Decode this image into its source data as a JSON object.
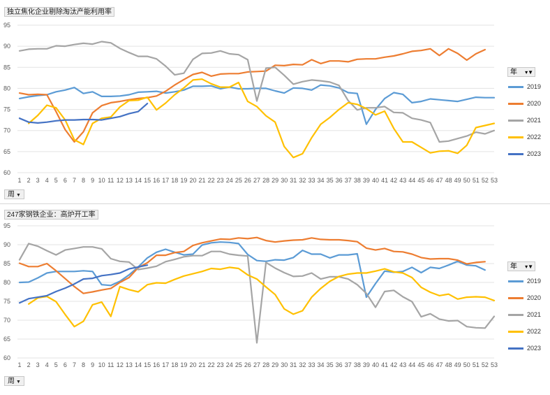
{
  "colors": {
    "2019": "#5B9BD5",
    "2020": "#ED7D31",
    "2021": "#A5A5A5",
    "2022": "#FFC000",
    "2023": "#4472C4"
  },
  "ui": {
    "x_field_label": "周",
    "legend_field_label": "年",
    "dropdown_icon": "dropdown-arrow-icon",
    "filter_icon": "filter-icon"
  },
  "chart_data": [
    {
      "type": "line",
      "title": "独立焦化企业剔除淘汰产能利用率",
      "xlabel": "周",
      "ylabel": "",
      "ylim": [
        60,
        95
      ],
      "yticks": [
        60,
        65,
        70,
        75,
        80,
        85,
        90,
        95
      ],
      "categories": [
        "1",
        "2",
        "3",
        "4",
        "5",
        "6",
        "7",
        "8",
        "9",
        "10",
        "11",
        "12",
        "13",
        "14",
        "15",
        "16",
        "17",
        "18",
        "19",
        "20",
        "21",
        "22",
        "23",
        "24",
        "25",
        "26",
        "27",
        "28",
        "29",
        "30",
        "31",
        "32",
        "33",
        "34",
        "35",
        "36",
        "37",
        "38",
        "39",
        "40",
        "41",
        "42",
        "43",
        "44",
        "45",
        "46",
        "47",
        "48",
        "49",
        "50",
        "51",
        "52",
        "53"
      ],
      "legend_title": "年",
      "legend_position": "right",
      "grid": true,
      "series": [
        {
          "name": "2019",
          "values": [
            77.6,
            78,
            78.3,
            78.5,
            79.2,
            79.6,
            80.2,
            78.8,
            79.2,
            78.1,
            78.1,
            78.2,
            78.5,
            79.1,
            79.2,
            79.3,
            78.9,
            79.2,
            79.6,
            80.5,
            80.5,
            80.6,
            79.9,
            80.3,
            79.9,
            79.9,
            80,
            80,
            79.4,
            78.9,
            80.1,
            80,
            79.6,
            80.8,
            80.6,
            80.1,
            79,
            78.8,
            71.5,
            75,
            77.6,
            79,
            78.6,
            76.6,
            76.9,
            77.5,
            77.3,
            77.1,
            76.9,
            77.4,
            77.9,
            77.8,
            77.8
          ]
        },
        {
          "name": "2020",
          "values": [
            78.9,
            78.5,
            78.6,
            78.5,
            74.5,
            70.2,
            67.3,
            69.7,
            74.2,
            75.9,
            76.6,
            76.9,
            77.3,
            77.6,
            77.8,
            78.2,
            79.3,
            80.8,
            82.1,
            83.3,
            83.8,
            82.9,
            83.4,
            83.5,
            83.5,
            83.9,
            84,
            84.1,
            85.5,
            85.4,
            85.7,
            85.6,
            86.8,
            85.9,
            86.5,
            86.5,
            86.3,
            86.9,
            87,
            87,
            87.4,
            87.7,
            88.2,
            88.8,
            89,
            89.4,
            87.8,
            89.4,
            88.3,
            86.7,
            88.2,
            89.2,
            null
          ]
        },
        {
          "name": "2021",
          "values": [
            88.9,
            89.3,
            89.4,
            89.4,
            90.1,
            90,
            90.4,
            90.7,
            90.5,
            91.1,
            90.8,
            89.5,
            88.5,
            87.6,
            87.6,
            87,
            85.3,
            83.2,
            83.6,
            86.9,
            88.3,
            88.4,
            88.9,
            88.2,
            88,
            86.8,
            77,
            84.8,
            85,
            83.1,
            81,
            81.6,
            82,
            81.8,
            81.5,
            80.7,
            77.1,
            74.9,
            75.4,
            75.4,
            75.7,
            74.3,
            74.2,
            72.9,
            72.5,
            71.9,
            67.3,
            67.5,
            68.1,
            68.7,
            69.6,
            69.2,
            70
          ]
        },
        {
          "name": "2022",
          "values": [
            null,
            71.7,
            73.6,
            76,
            75.4,
            72.5,
            67.8,
            66.7,
            71.7,
            72.9,
            73.2,
            75.6,
            77.1,
            77.2,
            77.9,
            74.9,
            76.5,
            78.5,
            80.1,
            82,
            82.2,
            81.1,
            80.3,
            80.3,
            81.4,
            76.9,
            75.7,
            73.5,
            72,
            66.2,
            63.6,
            64.5,
            68.3,
            71.5,
            73.1,
            75,
            76.6,
            76.2,
            75.2,
            73.7,
            74.6,
            70.5,
            67.3,
            67.3,
            66,
            64.7,
            65.1,
            65.2,
            64.6,
            66.5,
            70.7,
            71.2,
            71.7
          ]
        },
        {
          "name": "2023",
          "values": [
            72.9,
            72,
            71.8,
            72,
            72.3,
            72.5,
            72.5,
            72.6,
            72.6,
            72.5,
            72.9,
            73.3,
            74,
            74.5,
            76.4,
            null,
            null,
            null,
            null,
            null,
            null,
            null,
            null,
            null,
            null,
            null,
            null,
            null,
            null,
            null,
            null,
            null,
            null,
            null,
            null,
            null,
            null,
            null,
            null,
            null,
            null,
            null,
            null,
            null,
            null,
            null,
            null,
            null,
            null,
            null,
            null,
            null,
            null
          ]
        }
      ]
    },
    {
      "type": "line",
      "title": "247家钢铁企业：高炉开工率",
      "xlabel": "周",
      "ylabel": "",
      "ylim": [
        60,
        95
      ],
      "yticks": [
        60,
        65,
        70,
        75,
        80,
        85,
        90,
        95
      ],
      "categories": [
        "1",
        "2",
        "3",
        "4",
        "5",
        "6",
        "7",
        "8",
        "9",
        "10",
        "11",
        "12",
        "13",
        "14",
        "15",
        "16",
        "17",
        "18",
        "19",
        "20",
        "21",
        "22",
        "23",
        "24",
        "25",
        "26",
        "27",
        "28",
        "29",
        "30",
        "31",
        "32",
        "33",
        "34",
        "35",
        "36",
        "37",
        "38",
        "39",
        "40",
        "41",
        "42",
        "43",
        "44",
        "45",
        "46",
        "47",
        "48",
        "49",
        "50",
        "51",
        "52",
        "53"
      ],
      "legend_title": "年",
      "legend_position": "right",
      "grid": true,
      "series": [
        {
          "name": "2019",
          "values": [
            80,
            80.1,
            81.2,
            82.5,
            82.9,
            82.9,
            82.9,
            83.1,
            82.9,
            79.4,
            79.2,
            80.3,
            82,
            84.1,
            86.5,
            88,
            88.8,
            88,
            87.3,
            87.5,
            89.9,
            90.5,
            90.7,
            90.6,
            90.3,
            87.4,
            85.8,
            85.6,
            86,
            85.9,
            86.6,
            88.5,
            87.5,
            87.5,
            86.5,
            87.3,
            87.3,
            87.6,
            76.1,
            79.7,
            83,
            82.7,
            82.9,
            84,
            82.6,
            84,
            83.7,
            84.6,
            85.6,
            84.6,
            84.4,
            83.3,
            null
          ]
        },
        {
          "name": "2020",
          "values": [
            85.1,
            84.2,
            84.2,
            85,
            83.1,
            81,
            78.9,
            77.1,
            77.5,
            78,
            78.4,
            80,
            81.3,
            83.9,
            85.2,
            87.2,
            87.2,
            87.9,
            88.2,
            89.8,
            90.5,
            91,
            91.5,
            91.4,
            91.8,
            91.6,
            91.9,
            91.1,
            90.7,
            91,
            91.2,
            91.3,
            91.8,
            91.4,
            91.3,
            91.3,
            91.1,
            90.8,
            89.1,
            88.6,
            89,
            88.2,
            88.1,
            87.5,
            86.6,
            86.2,
            86.3,
            86.3,
            85.9,
            84.9,
            85.3,
            85.5,
            null
          ]
        },
        {
          "name": "2021",
          "values": [
            86,
            90.3,
            89.6,
            88.4,
            87.3,
            88.6,
            89,
            89.4,
            89.4,
            88.9,
            86.3,
            85.6,
            85.4,
            83.4,
            83.8,
            84.3,
            85.5,
            86.1,
            86.8,
            87.1,
            87.1,
            88.2,
            88.2,
            87.5,
            87.2,
            87,
            64,
            85.3,
            83.8,
            82.6,
            81.6,
            81.7,
            82.5,
            80.9,
            81.5,
            81.5,
            80.9,
            79.4,
            77.1,
            73.4,
            77.6,
            77.9,
            76.2,
            74.9,
            70.9,
            71.7,
            70.3,
            69.8,
            69.9,
            68.3,
            68,
            67.9,
            71
          ]
        },
        {
          "name": "2022",
          "values": [
            null,
            74.3,
            75.9,
            76.3,
            74.9,
            71.5,
            68.3,
            69.7,
            74.1,
            74.8,
            71,
            78.9,
            78.1,
            77.5,
            79.4,
            79.9,
            79.8,
            80.8,
            81.7,
            82.3,
            82.9,
            83.7,
            83.5,
            84,
            83.7,
            82,
            80.9,
            78.8,
            76.8,
            73,
            71.6,
            72.5,
            76.1,
            78.4,
            80.3,
            81.6,
            82.2,
            82.5,
            82.5,
            83,
            83.6,
            82.8,
            82.5,
            81.3,
            78.7,
            77.4,
            76.5,
            76.9,
            75.6,
            76.1,
            76.2,
            76.1,
            75.2
          ]
        },
        {
          "name": "2023",
          "values": [
            74.6,
            75.7,
            76.1,
            76.5,
            77.6,
            78.5,
            79.6,
            80.9,
            81.1,
            81.8,
            82.1,
            82.5,
            83.6,
            84.1,
            84.6,
            null,
            null,
            null,
            null,
            null,
            null,
            null,
            null,
            null,
            null,
            null,
            null,
            null,
            null,
            null,
            null,
            null,
            null,
            null,
            null,
            null,
            null,
            null,
            null,
            null,
            null,
            null,
            null,
            null,
            null,
            null,
            null,
            null,
            null,
            null,
            null,
            null,
            null
          ]
        }
      ]
    }
  ]
}
